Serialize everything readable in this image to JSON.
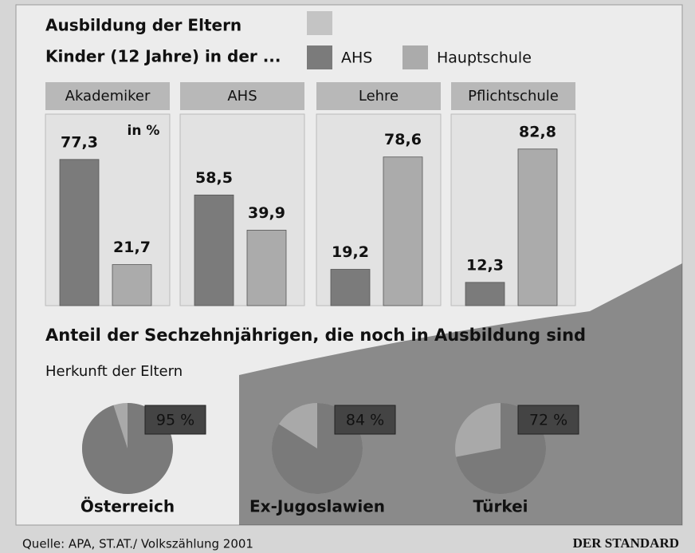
{
  "chart_data": [
    {
      "type": "bar",
      "title": "Ausbildung der Eltern",
      "subtitle": "Kinder (12 Jahre) in der ...",
      "unit_label": "in %",
      "categories": [
        "Akademiker",
        "AHS",
        "Lehre",
        "Pflichtschule"
      ],
      "series": [
        {
          "name": "AHS",
          "color": "#7b7b7b",
          "values": [
            77.3,
            58.5,
            19.2,
            12.3
          ],
          "value_labels": [
            "77,3",
            "58,5",
            "19,2",
            "12,3"
          ]
        },
        {
          "name": "Hauptschule",
          "color": "#ababab",
          "values": [
            21.7,
            39.9,
            78.6,
            82.8
          ],
          "value_labels": [
            "21,7",
            "39,9",
            "78,6",
            "82,8"
          ]
        }
      ],
      "ylim": [
        0,
        100
      ]
    },
    {
      "type": "pie",
      "title": "Anteil der Sechzehnjährigen, die noch in Ausbildung sind",
      "subtitle": "Herkunft der Eltern",
      "categories": [
        "Österreich",
        "Ex-Jugoslawien",
        "Türkei"
      ],
      "values": [
        95,
        84,
        72
      ],
      "value_labels": [
        "95 %",
        "84 %",
        "72 %"
      ],
      "color": "#7a7a7a"
    }
  ],
  "footer": {
    "source": "Quelle: APA, ST.AT./ Volkszählung 2001",
    "publisher": "DER STANDARD"
  }
}
